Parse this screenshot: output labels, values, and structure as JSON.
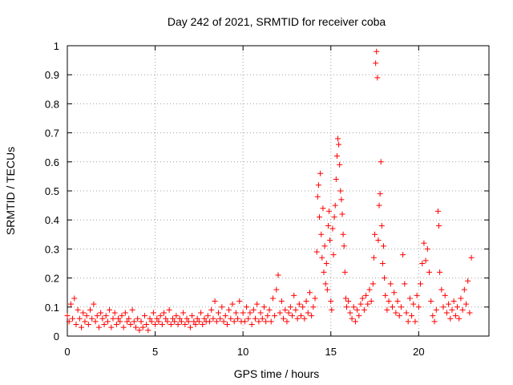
{
  "chart_data": {
    "type": "scatter",
    "title": "Day 242 of 2021, SRMTID for receiver coba",
    "xlabel": "GPS time / hours",
    "ylabel": "SRMTID / TECUs",
    "xlim": [
      0,
      24
    ],
    "ylim": [
      0,
      1
    ],
    "xticks": [
      0,
      5,
      10,
      15,
      20
    ],
    "xtick_labels": [
      "0",
      "5",
      "10",
      "15",
      "20"
    ],
    "yticks": [
      0,
      0.1,
      0.2,
      0.3,
      0.4,
      0.5,
      0.6,
      0.7,
      0.8,
      0.9,
      1
    ],
    "ytick_labels": [
      "0",
      "0.1",
      "0.2",
      "0.3",
      "0.4",
      "0.5",
      "0.6",
      "0.7",
      "0.8",
      "0.9",
      "1"
    ],
    "grid": true,
    "marker": "+",
    "color": "#ff0000",
    "series": [
      {
        "name": "SRMTID",
        "points": [
          [
            0.0,
            0.07
          ],
          [
            0.1,
            0.05
          ],
          [
            0.2,
            0.11
          ],
          [
            0.3,
            0.06
          ],
          [
            0.4,
            0.13
          ],
          [
            0.5,
            0.04
          ],
          [
            0.6,
            0.09
          ],
          [
            0.7,
            0.06
          ],
          [
            0.8,
            0.03
          ],
          [
            0.9,
            0.08
          ],
          [
            1.0,
            0.05
          ],
          [
            1.1,
            0.07
          ],
          [
            1.2,
            0.04
          ],
          [
            1.3,
            0.09
          ],
          [
            1.4,
            0.06
          ],
          [
            1.5,
            0.11
          ],
          [
            1.6,
            0.05
          ],
          [
            1.7,
            0.07
          ],
          [
            1.8,
            0.03
          ],
          [
            1.9,
            0.08
          ],
          [
            2.0,
            0.06
          ],
          [
            2.1,
            0.04
          ],
          [
            2.2,
            0.07
          ],
          [
            2.3,
            0.05
          ],
          [
            2.4,
            0.09
          ],
          [
            2.5,
            0.03
          ],
          [
            2.6,
            0.06
          ],
          [
            2.7,
            0.08
          ],
          [
            2.8,
            0.04
          ],
          [
            2.9,
            0.06
          ],
          [
            3.0,
            0.05
          ],
          [
            3.1,
            0.07
          ],
          [
            3.2,
            0.03
          ],
          [
            3.3,
            0.08
          ],
          [
            3.4,
            0.05
          ],
          [
            3.5,
            0.06
          ],
          [
            3.6,
            0.04
          ],
          [
            3.7,
            0.09
          ],
          [
            3.8,
            0.05
          ],
          [
            3.9,
            0.03
          ],
          [
            4.0,
            0.06
          ],
          [
            4.1,
            0.02
          ],
          [
            4.2,
            0.05
          ],
          [
            4.3,
            0.03
          ],
          [
            4.4,
            0.07
          ],
          [
            4.5,
            0.04
          ],
          [
            4.6,
            0.02
          ],
          [
            4.7,
            0.06
          ],
          [
            4.8,
            0.05
          ],
          [
            4.9,
            0.08
          ],
          [
            5.0,
            0.04
          ],
          [
            5.1,
            0.06
          ],
          [
            5.2,
            0.05
          ],
          [
            5.3,
            0.07
          ],
          [
            5.4,
            0.04
          ],
          [
            5.5,
            0.08
          ],
          [
            5.6,
            0.06
          ],
          [
            5.7,
            0.05
          ],
          [
            5.8,
            0.09
          ],
          [
            5.9,
            0.04
          ],
          [
            6.0,
            0.06
          ],
          [
            6.1,
            0.05
          ],
          [
            6.2,
            0.07
          ],
          [
            6.3,
            0.04
          ],
          [
            6.4,
            0.06
          ],
          [
            6.5,
            0.05
          ],
          [
            6.6,
            0.08
          ],
          [
            6.7,
            0.04
          ],
          [
            6.8,
            0.06
          ],
          [
            6.9,
            0.05
          ],
          [
            7.0,
            0.03
          ],
          [
            7.1,
            0.07
          ],
          [
            7.2,
            0.05
          ],
          [
            7.3,
            0.04
          ],
          [
            7.4,
            0.06
          ],
          [
            7.5,
            0.05
          ],
          [
            7.6,
            0.08
          ],
          [
            7.7,
            0.04
          ],
          [
            7.8,
            0.06
          ],
          [
            7.9,
            0.05
          ],
          [
            8.0,
            0.07
          ],
          [
            8.1,
            0.05
          ],
          [
            8.2,
            0.09
          ],
          [
            8.3,
            0.06
          ],
          [
            8.4,
            0.12
          ],
          [
            8.5,
            0.05
          ],
          [
            8.6,
            0.08
          ],
          [
            8.7,
            0.06
          ],
          [
            8.8,
            0.1
          ],
          [
            8.9,
            0.05
          ],
          [
            9.0,
            0.07
          ],
          [
            9.1,
            0.04
          ],
          [
            9.2,
            0.09
          ],
          [
            9.3,
            0.06
          ],
          [
            9.4,
            0.11
          ],
          [
            9.5,
            0.05
          ],
          [
            9.6,
            0.08
          ],
          [
            9.7,
            0.06
          ],
          [
            9.8,
            0.12
          ],
          [
            9.9,
            0.05
          ],
          [
            10.0,
            0.08
          ],
          [
            10.1,
            0.05
          ],
          [
            10.2,
            0.1
          ],
          [
            10.3,
            0.06
          ],
          [
            10.4,
            0.08
          ],
          [
            10.5,
            0.04
          ],
          [
            10.6,
            0.09
          ],
          [
            10.7,
            0.06
          ],
          [
            10.8,
            0.11
          ],
          [
            10.9,
            0.05
          ],
          [
            11.0,
            0.08
          ],
          [
            11.1,
            0.06
          ],
          [
            11.2,
            0.1
          ],
          [
            11.3,
            0.05
          ],
          [
            11.4,
            0.07
          ],
          [
            11.5,
            0.09
          ],
          [
            11.6,
            0.05
          ],
          [
            11.7,
            0.13
          ],
          [
            11.8,
            0.07
          ],
          [
            11.9,
            0.16
          ],
          [
            12.0,
            0.21
          ],
          [
            12.1,
            0.08
          ],
          [
            12.2,
            0.12
          ],
          [
            12.3,
            0.06
          ],
          [
            12.4,
            0.09
          ],
          [
            12.5,
            0.05
          ],
          [
            12.6,
            0.08
          ],
          [
            12.7,
            0.1
          ],
          [
            12.8,
            0.07
          ],
          [
            12.9,
            0.14
          ],
          [
            13.0,
            0.09
          ],
          [
            13.1,
            0.06
          ],
          [
            13.2,
            0.11
          ],
          [
            13.3,
            0.07
          ],
          [
            13.4,
            0.1
          ],
          [
            13.5,
            0.06
          ],
          [
            13.6,
            0.12
          ],
          [
            13.7,
            0.08
          ],
          [
            13.8,
            0.15
          ],
          [
            13.9,
            0.07
          ],
          [
            14.0,
            0.1
          ],
          [
            14.1,
            0.13
          ],
          [
            14.2,
            0.29
          ],
          [
            14.25,
            0.48
          ],
          [
            14.3,
            0.52
          ],
          [
            14.35,
            0.41
          ],
          [
            14.4,
            0.56
          ],
          [
            14.45,
            0.35
          ],
          [
            14.5,
            0.27
          ],
          [
            14.55,
            0.44
          ],
          [
            14.6,
            0.22
          ],
          [
            14.65,
            0.31
          ],
          [
            14.7,
            0.18
          ],
          [
            14.75,
            0.25
          ],
          [
            14.8,
            0.16
          ],
          [
            14.85,
            0.38
          ],
          [
            14.9,
            0.43
          ],
          [
            14.95,
            0.33
          ],
          [
            15.0,
            0.12
          ],
          [
            15.05,
            0.09
          ],
          [
            15.1,
            0.37
          ],
          [
            15.15,
            0.28
          ],
          [
            15.2,
            0.41
          ],
          [
            15.25,
            0.45
          ],
          [
            15.3,
            0.54
          ],
          [
            15.35,
            0.62
          ],
          [
            15.4,
            0.68
          ],
          [
            15.45,
            0.66
          ],
          [
            15.5,
            0.59
          ],
          [
            15.55,
            0.5
          ],
          [
            15.6,
            0.47
          ],
          [
            15.65,
            0.42
          ],
          [
            15.7,
            0.35
          ],
          [
            15.75,
            0.31
          ],
          [
            15.8,
            0.22
          ],
          [
            15.85,
            0.13
          ],
          [
            15.9,
            0.1
          ],
          [
            16.0,
            0.12
          ],
          [
            16.1,
            0.08
          ],
          [
            16.2,
            0.06
          ],
          [
            16.3,
            0.1
          ],
          [
            16.4,
            0.05
          ],
          [
            16.5,
            0.09
          ],
          [
            16.6,
            0.07
          ],
          [
            16.7,
            0.11
          ],
          [
            16.8,
            0.13
          ],
          [
            16.9,
            0.09
          ],
          [
            17.0,
            0.14
          ],
          [
            17.1,
            0.11
          ],
          [
            17.2,
            0.16
          ],
          [
            17.3,
            0.12
          ],
          [
            17.4,
            0.18
          ],
          [
            17.45,
            0.27
          ],
          [
            17.5,
            0.35
          ],
          [
            17.55,
            0.94
          ],
          [
            17.6,
            0.98
          ],
          [
            17.65,
            0.89
          ],
          [
            17.7,
            0.33
          ],
          [
            17.75,
            0.45
          ],
          [
            17.8,
            0.49
          ],
          [
            17.85,
            0.6
          ],
          [
            17.9,
            0.38
          ],
          [
            17.95,
            0.25
          ],
          [
            18.0,
            0.31
          ],
          [
            18.05,
            0.2
          ],
          [
            18.1,
            0.14
          ],
          [
            18.2,
            0.09
          ],
          [
            18.3,
            0.12
          ],
          [
            18.4,
            0.18
          ],
          [
            18.5,
            0.1
          ],
          [
            18.6,
            0.15
          ],
          [
            18.7,
            0.08
          ],
          [
            18.8,
            0.12
          ],
          [
            18.9,
            0.07
          ],
          [
            19.0,
            0.1
          ],
          [
            19.1,
            0.28
          ],
          [
            19.2,
            0.18
          ],
          [
            19.3,
            0.08
          ],
          [
            19.4,
            0.05
          ],
          [
            19.5,
            0.13
          ],
          [
            19.6,
            0.07
          ],
          [
            19.7,
            0.11
          ],
          [
            19.8,
            0.05
          ],
          [
            19.9,
            0.14
          ],
          [
            20.0,
            0.1
          ],
          [
            20.1,
            0.18
          ],
          [
            20.2,
            0.25
          ],
          [
            20.3,
            0.32
          ],
          [
            20.4,
            0.26
          ],
          [
            20.5,
            0.3
          ],
          [
            20.6,
            0.22
          ],
          [
            20.7,
            0.12
          ],
          [
            20.8,
            0.07
          ],
          [
            20.9,
            0.05
          ],
          [
            21.0,
            0.09
          ],
          [
            21.1,
            0.43
          ],
          [
            21.15,
            0.38
          ],
          [
            21.2,
            0.22
          ],
          [
            21.3,
            0.16
          ],
          [
            21.4,
            0.1
          ],
          [
            21.5,
            0.14
          ],
          [
            21.6,
            0.08
          ],
          [
            21.7,
            0.11
          ],
          [
            21.8,
            0.06
          ],
          [
            21.9,
            0.09
          ],
          [
            22.0,
            0.12
          ],
          [
            22.1,
            0.07
          ],
          [
            22.2,
            0.1
          ],
          [
            22.3,
            0.06
          ],
          [
            22.4,
            0.13
          ],
          [
            22.5,
            0.09
          ],
          [
            22.6,
            0.16
          ],
          [
            22.7,
            0.11
          ],
          [
            22.8,
            0.19
          ],
          [
            22.9,
            0.08
          ],
          [
            23.0,
            0.27
          ]
        ]
      }
    ]
  }
}
